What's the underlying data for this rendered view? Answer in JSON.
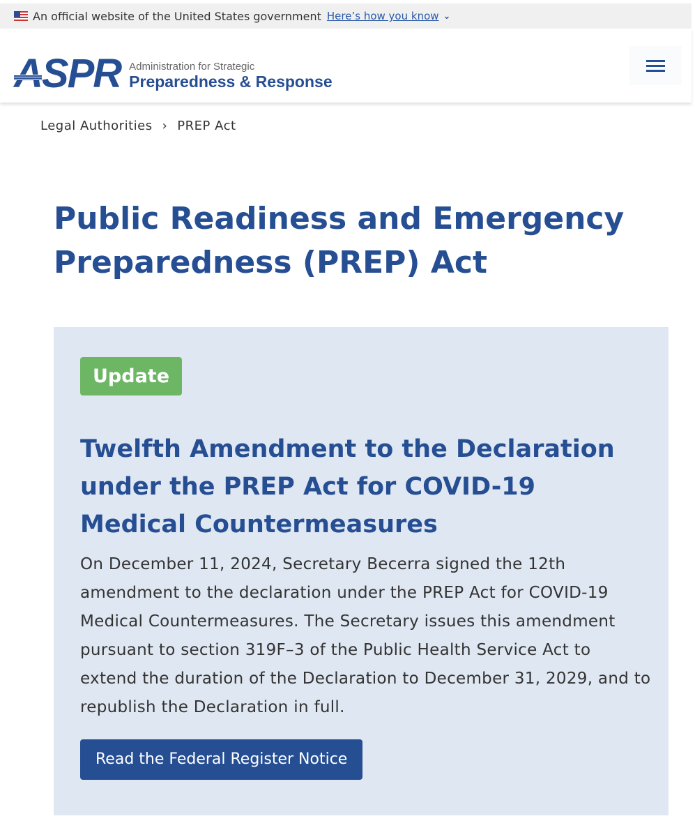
{
  "gov_banner": {
    "text": "An official website of the United States government",
    "link": "Here’s how you know"
  },
  "header": {
    "logo_mark": "ASPR",
    "logo_sub": "Administration for Strategic",
    "logo_main": "Preparedness & Response",
    "menu_icon": "hamburger-icon"
  },
  "breadcrumb": [
    {
      "label": "Legal Authorities"
    },
    {
      "label": "PREP Act"
    }
  ],
  "page_title": "Public Readiness and Emergency Preparedness (PREP) Act",
  "update": {
    "badge": "Update",
    "title": "Twelfth Amendment to the Declaration under the PREP Act for COVID-19 Medical Countermeasures",
    "body": "On December 11, 2024, Secretary Becerra signed the 12th amendment to the declaration under the PREP Act for COVID-19 Medical Countermeasures. The Secretary issues this amendment pursuant to section 319F–3 of the Public Health Service Act to extend the duration of the Declaration to December 31, 2029, and to republish the Declaration in full.",
    "button": "Read the Federal Register Notice"
  },
  "colors": {
    "brand_blue": "#264e93",
    "badge_green": "#6db664",
    "panel_bg": "#dfe7f2"
  }
}
